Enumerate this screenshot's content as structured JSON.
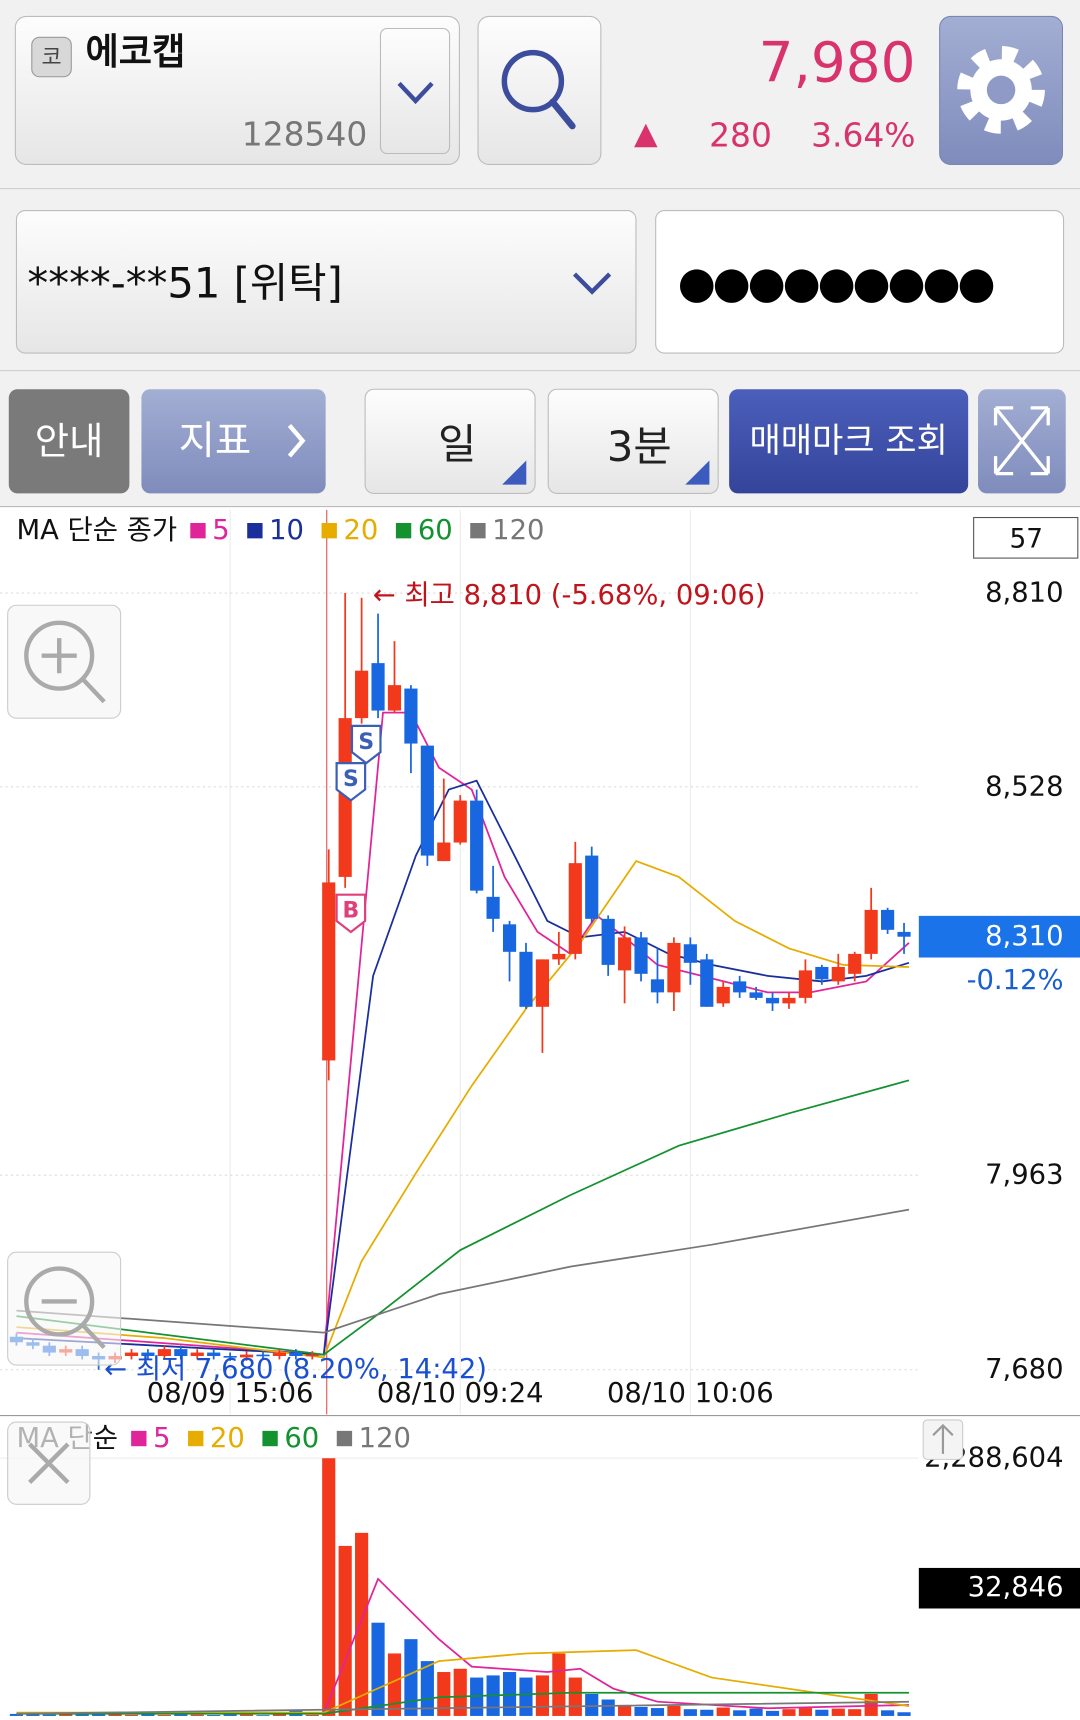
{
  "header": {
    "market_badge": "코",
    "stock_name": "에코캡",
    "stock_code": "128540",
    "price": "7,980",
    "change_arrow": "▲",
    "change": "280",
    "change_pct": "3.64%"
  },
  "account": {
    "number": "****-**51 [위탁]",
    "password": "●●●●●●●●●"
  },
  "toolbar": [
    "안내",
    "지표",
    "일",
    "3분",
    "매매마크 조회"
  ],
  "chart_data": [
    {
      "type": "candlestick",
      "title": "MA 단순 종가",
      "countdown": "57",
      "open": [
        7728,
        7720,
        7715,
        7705,
        7710,
        7700,
        7695,
        7700,
        7705,
        7700,
        7710,
        7700,
        7705,
        7700,
        7698,
        7702,
        7700,
        7705,
        7700,
        8130,
        8397,
        8628,
        8708,
        8639,
        8671,
        8588,
        8420,
        8447,
        8508,
        8368,
        8328,
        8288,
        8208,
        8277,
        8285,
        8428,
        8336,
        8261,
        8309,
        8248,
        8229,
        8299,
        8277,
        8213,
        8245,
        8229,
        8221,
        8213,
        8221,
        8266,
        8245,
        8256,
        8285,
        8349,
        8317
      ],
      "high": [
        7733,
        7725,
        7720,
        7715,
        7715,
        7705,
        7705,
        7710,
        7710,
        7715,
        7715,
        7710,
        7710,
        7705,
        7707,
        7707,
        7710,
        7710,
        7707,
        8437,
        8810,
        8803,
        8780,
        8740,
        8676,
        8588,
        8540,
        8516,
        8524,
        8413,
        8333,
        8301,
        8277,
        8317,
        8448,
        8441,
        8341,
        8325,
        8317,
        8293,
        8309,
        8309,
        8285,
        8245,
        8253,
        8237,
        8229,
        8229,
        8277,
        8269,
        8285,
        8288,
        8381,
        8352,
        8330
      ],
      "low": [
        7715,
        7710,
        7700,
        7700,
        7695,
        7680,
        7690,
        7695,
        7695,
        7695,
        7695,
        7695,
        7695,
        7693,
        7693,
        7695,
        7695,
        7695,
        7695,
        8101,
        8381,
        8620,
        8628,
        8636,
        8548,
        8413,
        8420,
        8444,
        8373,
        8317,
        8245,
        8205,
        8141,
        8269,
        8277,
        8330,
        8253,
        8213,
        8245,
        8213,
        8202,
        8240,
        8208,
        8208,
        8221,
        8218,
        8202,
        8205,
        8213,
        8240,
        8240,
        8245,
        8277,
        8314,
        8285
      ],
      "close": [
        7720,
        7715,
        7705,
        7710,
        7700,
        7695,
        7700,
        7705,
        7700,
        7710,
        7700,
        7705,
        7700,
        7698,
        7702,
        7700,
        7705,
        7700,
        7702,
        8389,
        8628,
        8697,
        8639,
        8676,
        8591,
        8428,
        8447,
        8508,
        8377,
        8336,
        8288,
        8208,
        8277,
        8285,
        8417,
        8336,
        8269,
        8309,
        8256,
        8229,
        8301,
        8272,
        8208,
        8237,
        8229,
        8221,
        8213,
        8221,
        8261,
        8248,
        8266,
        8285,
        8349,
        8320,
        8310
      ],
      "colors": {
        "up": "#f2391c",
        "down": "#1867e0"
      },
      "series": [
        {
          "name": "5",
          "color": "#e0249a",
          "x": [
            0,
            18.7,
            22.3,
            24,
            25.7,
            27.7,
            29.7,
            31.7,
            33.7,
            35.3,
            37,
            39,
            41.7,
            45.7,
            48.3,
            51.7,
            54.3
          ],
          "values": [
            7734,
            7702,
            8636,
            8636,
            8556,
            8524,
            8397,
            8317,
            8285,
            8341,
            8309,
            8269,
            8253,
            8229,
            8229,
            8245,
            8301
          ]
        },
        {
          "name": "10",
          "color": "#1a2f9c",
          "x": [
            0,
            18.7,
            21.7,
            24.3,
            26.3,
            28,
            30.3,
            32.3,
            34.3,
            37,
            39.7,
            42.3,
            45.7,
            49,
            51.7,
            54.3
          ],
          "values": [
            7726,
            7702,
            8253,
            8428,
            8524,
            8537,
            8428,
            8333,
            8309,
            8317,
            8285,
            8269,
            8253,
            8245,
            8253,
            8272
          ]
        },
        {
          "name": "20",
          "color": "#e6ac00",
          "x": [
            0,
            9,
            18.7,
            21,
            24.3,
            27.7,
            31,
            34.3,
            37.7,
            40.3,
            43.7,
            47,
            50.3,
            54.3
          ],
          "values": [
            7742,
            7726,
            7698,
            7838,
            7966,
            8093,
            8205,
            8301,
            8420,
            8397,
            8333,
            8293,
            8269,
            8266
          ]
        },
        {
          "name": "60",
          "color": "#13922f",
          "x": [
            0,
            18.7,
            22.3,
            27,
            33.7,
            40.3,
            47,
            54.3
          ],
          "values": [
            7758,
            7702,
            7766,
            7854,
            7934,
            8006,
            8053,
            8101
          ]
        },
        {
          "name": "120",
          "color": "#777777",
          "x": [
            0,
            18.7,
            25.7,
            33.7,
            42.3,
            54.3
          ],
          "values": [
            7766,
            7734,
            7790,
            7830,
            7862,
            7913
          ]
        }
      ],
      "xlim": [
        -1,
        54.9
      ],
      "xticks": [
        {
          "value": 13,
          "label": "08/09 15:06"
        },
        {
          "value": 27,
          "label": "08/10 09:24"
        },
        {
          "value": 41,
          "label": "08/10 10:06"
        }
      ],
      "ylim": [
        7615,
        8931
      ],
      "yticks": [
        {
          "value": 8810,
          "label": "8,810"
        },
        {
          "value": 8528,
          "label": "8,528"
        },
        {
          "value": 7963,
          "label": "7,963"
        },
        {
          "value": 7680,
          "label": "7,680"
        }
      ],
      "grid": true,
      "current": {
        "value": 8310,
        "label": "8,310",
        "change": "-0.12%"
      },
      "annotations": [
        {
          "text": "← 최고 8,810 (-5.68%, 09:06)",
          "color": "#c0141c"
        },
        {
          "text": "← 최저 7,680 (8.20%, 14:42)",
          "color": "#1a4fd0"
        }
      ],
      "trade_marks": [
        "S",
        "S",
        "B"
      ]
    },
    {
      "type": "bar",
      "title": "MA 단순",
      "values": [
        18000,
        25000,
        12000,
        20000,
        15000,
        30000,
        22000,
        10000,
        14000,
        9000,
        26000,
        11000,
        8000,
        16000,
        12000,
        7000,
        15000,
        48000,
        10000,
        2288604,
        1510000,
        1626000,
        828000,
        555000,
        682000,
        487000,
        390000,
        419000,
        341000,
        360000,
        390000,
        341000,
        360000,
        555000,
        341000,
        195000,
        146000,
        97000,
        80000,
        70000,
        90000,
        60000,
        55000,
        75000,
        50000,
        65000,
        45000,
        60000,
        70000,
        55000,
        65000,
        60000,
        195000,
        50000,
        32846
      ],
      "series": [
        {
          "name": "5",
          "color": "#e0249a",
          "x": [
            0,
            18.7,
            22,
            25.7,
            27.7,
            32.3,
            34.3,
            36.3,
            39,
            45.7,
            54.3
          ],
          "values": [
            20000,
            20000,
            1217000,
            682000,
            438000,
            390000,
            419000,
            243000,
            127000,
            68000,
            97000
          ]
        },
        {
          "name": "20",
          "color": "#e6ac00",
          "x": [
            0,
            18.7,
            25.7,
            31,
            37.7,
            42.3,
            54.3
          ],
          "values": [
            29000,
            29000,
            487000,
            555000,
            584000,
            341000,
            88000
          ]
        },
        {
          "name": "60",
          "color": "#13922f",
          "x": [
            0,
            18.7,
            25.7,
            33.7,
            54.3
          ],
          "values": [
            19000,
            19000,
            166000,
            205000,
            205000
          ]
        },
        {
          "name": "120",
          "color": "#777777",
          "x": [
            0,
            25.7,
            54.3
          ],
          "values": [
            19000,
            68000,
            127000
          ]
        }
      ],
      "xlim": [
        -1,
        54.9
      ],
      "ylim": [
        0,
        2629000
      ],
      "yticks": [
        {
          "value": 2288604,
          "label": "2,288,604"
        }
      ],
      "current_label": "32,846"
    }
  ]
}
